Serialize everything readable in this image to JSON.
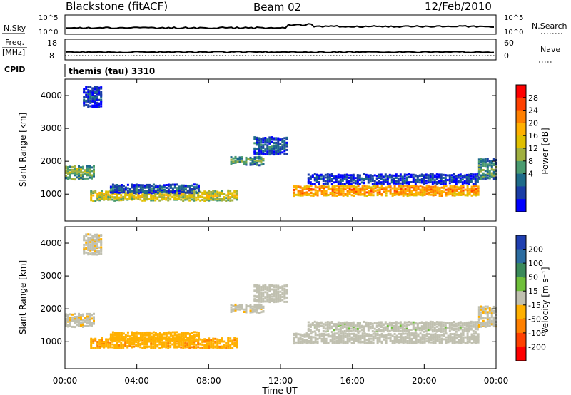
{
  "header": {
    "station": "Blackstone (fitACF)",
    "beam": "Beam 02",
    "date": "12/Feb/2010"
  },
  "noise_panel": {
    "left_label": "N.Sky",
    "right_label": "N.Search",
    "left_ticks": [
      "10^5",
      "10^0"
    ],
    "right_ticks": [
      "10^5",
      "10^0"
    ]
  },
  "freq_panel": {
    "left_label_line1": "Freq.",
    "left_label_line2": "[MHz]",
    "left_ticks": [
      "18",
      "8"
    ],
    "right_label": "Nave",
    "right_ticks": [
      "60",
      "0"
    ]
  },
  "cpid": {
    "label": "CPID",
    "value": "themis (tau) 3310"
  },
  "power_colorbar": {
    "label": "Power [dB]",
    "ticks": [
      "28",
      "24",
      "20",
      "16",
      "12",
      "8",
      "4"
    ],
    "colors": [
      "#ff0000",
      "#ff4000",
      "#ff8000",
      "#ffb000",
      "#e0c000",
      "#a0b040",
      "#4a9b6f",
      "#1e6b8a",
      "#1a3da6",
      "#0000ff"
    ]
  },
  "velocity_colorbar": {
    "label": "Velocity [m s⁻¹]",
    "ticks": [
      "200",
      "100",
      "50",
      "15",
      "-15",
      "-50",
      "-100",
      "-200"
    ],
    "colors": [
      "#1f3fb0",
      "#2b6ca0",
      "#3a8a5a",
      "#6fbf3a",
      "#c0c0b0",
      "#ffb000",
      "#ff8000",
      "#ff4000",
      "#ff0000"
    ]
  },
  "axes": {
    "ylabel": "Slant Range [km]",
    "y_ticks": [
      "4000",
      "3000",
      "2000",
      "1000"
    ],
    "xlabel": "Time UT",
    "x_ticks": [
      "00:00",
      "04:00",
      "08:00",
      "12:00",
      "16:00",
      "20:00",
      "00:00"
    ]
  },
  "chart_data": {
    "type": "heatmap",
    "title": "Blackstone (fitACF)",
    "xlabel": "Time UT",
    "ylabel": "Slant Range [km]",
    "xlim": [
      0,
      24
    ],
    "ylim": [
      180,
      4500
    ],
    "x_tick_hours": [
      0,
      4,
      8,
      12,
      16,
      20,
      24
    ],
    "y_tick_values": [
      4000,
      3000,
      2000,
      1000
    ],
    "power_range_db": [
      0,
      32
    ],
    "velocity_range_ms": [
      -250,
      250
    ],
    "scatter_regions": [
      {
        "t0": 0.0,
        "t1": 1.6,
        "r_center": 1700,
        "r_half": 200,
        "power": 14,
        "velocity": -15
      },
      {
        "t0": 1.0,
        "t1": 2.0,
        "r_center": 4000,
        "r_half": 300,
        "power": 6,
        "velocity": -15
      },
      {
        "t0": 1.4,
        "t1": 9.6,
        "r_center": 1000,
        "r_half": 150,
        "power": 18,
        "velocity": -70
      },
      {
        "t0": 2.5,
        "t1": 7.5,
        "r_center": 1200,
        "r_half": 120,
        "power": 8,
        "velocity": -60
      },
      {
        "t0": 9.2,
        "t1": 11.0,
        "r_center": 2050,
        "r_half": 120,
        "power": 12,
        "velocity": -10
      },
      {
        "t0": 10.5,
        "t1": 12.3,
        "r_center": 2500,
        "r_half": 250,
        "power": 8,
        "velocity": -5
      },
      {
        "t0": 12.7,
        "t1": 23.0,
        "r_center": 1150,
        "r_half": 150,
        "power": 24,
        "velocity": -5
      },
      {
        "t0": 13.5,
        "t1": 23.0,
        "r_center": 1500,
        "r_half": 150,
        "power": 6,
        "velocity": 10
      },
      {
        "t0": 23.0,
        "t1": 24.0,
        "r_center": 1800,
        "r_half": 300,
        "power": 12,
        "velocity": -15
      }
    ]
  }
}
